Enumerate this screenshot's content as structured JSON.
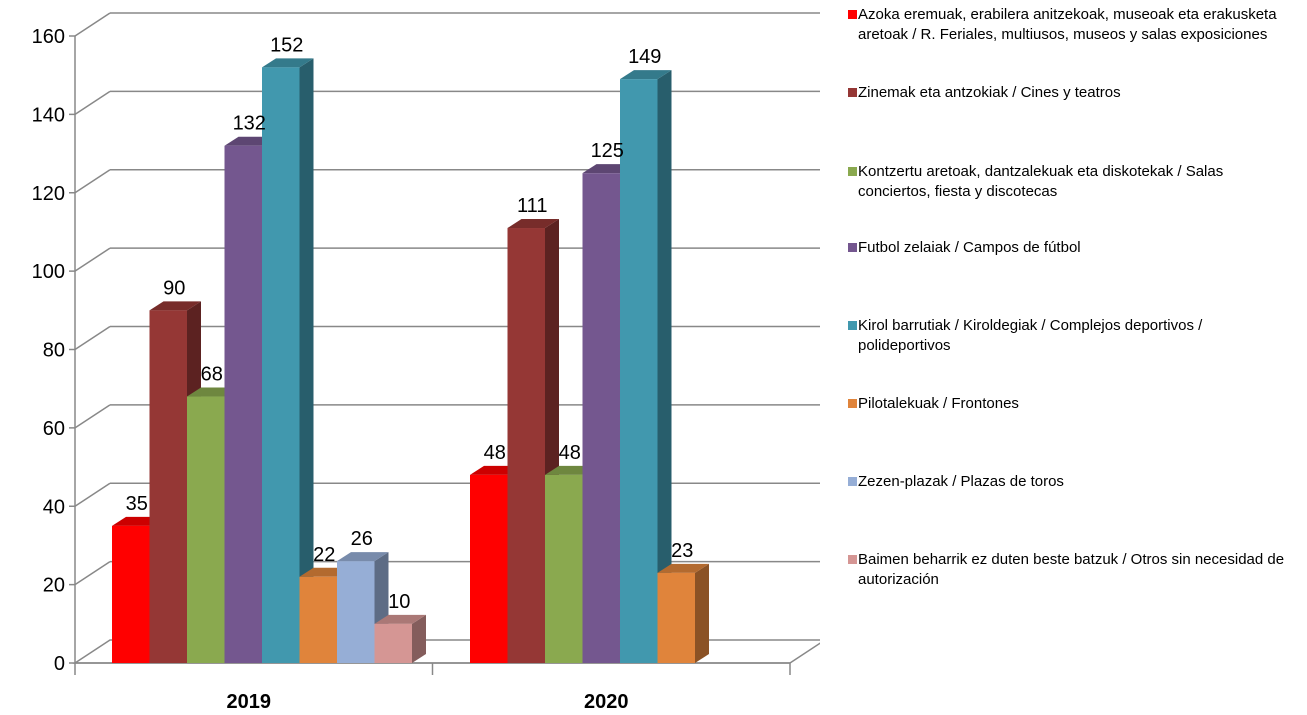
{
  "chart_data": {
    "type": "bar",
    "categories": [
      "2019",
      "2020"
    ],
    "ylim": [
      0,
      160
    ],
    "yticks": [
      0,
      20,
      40,
      60,
      80,
      100,
      120,
      140,
      160
    ],
    "grid": true,
    "legend_position": "right",
    "series": [
      {
        "name": "Azoka eremuak, erabilera anitzekoak, museoak eta erakusketa aretoak / R. Feriales, multiusos, museos y salas exposiciones",
        "color": "#ff0000",
        "values": [
          35,
          48
        ]
      },
      {
        "name": "Zinemak eta antzokiak  / Cines y teatros",
        "color": "#953735",
        "values": [
          90,
          111
        ]
      },
      {
        "name": "Kontzertu aretoak, dantzalekuak eta diskotekak  / Salas conciertos, fiesta y discotecas",
        "color": "#8aa94f",
        "values": [
          68,
          48
        ]
      },
      {
        "name": "Futbol zelaiak  / Campos de fútbol",
        "color": "#74578f",
        "values": [
          132,
          125
        ]
      },
      {
        "name": "Kirol barrutiak / Kiroldegiak / Complejos deportivos / polideportivos",
        "color": "#4198ae",
        "values": [
          152,
          149
        ]
      },
      {
        "name": "Pilotalekuak  / Frontones",
        "color": "#e0843b",
        "values": [
          22,
          23
        ]
      },
      {
        "name": "Zezen-plazak  / Plazas de toros",
        "color": "#96aed6",
        "values": [
          26,
          null
        ]
      },
      {
        "name": "Baimen beharrik ez duten beste batzuk / Otros sin necesidad de autorización",
        "color": "#d59694",
        "values": [
          10,
          null
        ]
      }
    ]
  }
}
